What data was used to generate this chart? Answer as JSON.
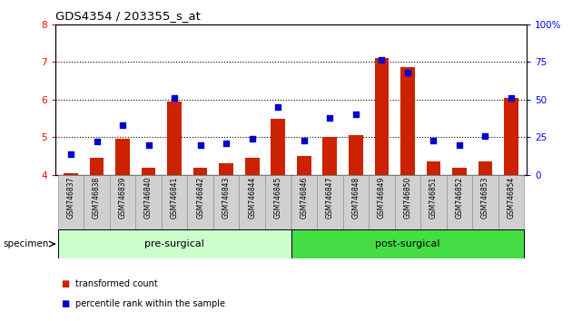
{
  "title": "GDS4354 / 203355_s_at",
  "samples": [
    "GSM746837",
    "GSM746838",
    "GSM746839",
    "GSM746840",
    "GSM746841",
    "GSM746842",
    "GSM746843",
    "GSM746844",
    "GSM746845",
    "GSM746846",
    "GSM746847",
    "GSM746848",
    "GSM746849",
    "GSM746850",
    "GSM746851",
    "GSM746852",
    "GSM746853",
    "GSM746854"
  ],
  "transformed_count": [
    4.05,
    4.45,
    4.95,
    4.2,
    5.95,
    4.2,
    4.3,
    4.45,
    5.5,
    4.5,
    5.0,
    5.05,
    7.1,
    6.85,
    4.35,
    4.2,
    4.35,
    6.05
  ],
  "percentile_rank": [
    14,
    22,
    33,
    20,
    51,
    20,
    21,
    24,
    45,
    23,
    38,
    40,
    76,
    68,
    23,
    20,
    26,
    51
  ],
  "pre_surgical_count": 9,
  "post_surgical_count": 9,
  "ylim_left": [
    4.0,
    8.0
  ],
  "ylim_right": [
    0,
    100
  ],
  "yticks_left": [
    4,
    5,
    6,
    7,
    8
  ],
  "yticks_right": [
    0,
    25,
    50,
    75,
    100
  ],
  "bar_color": "#cc2200",
  "dot_color": "#0000cc",
  "pre_color": "#ccffcc",
  "post_color": "#44dd44",
  "xticklabel_bg": "#d0d0d0",
  "specimen_label": "specimen",
  "pre_label": "pre-surgical",
  "post_label": "post-surgical",
  "legend_bar_label": "transformed count",
  "legend_dot_label": "percentile rank within the sample"
}
